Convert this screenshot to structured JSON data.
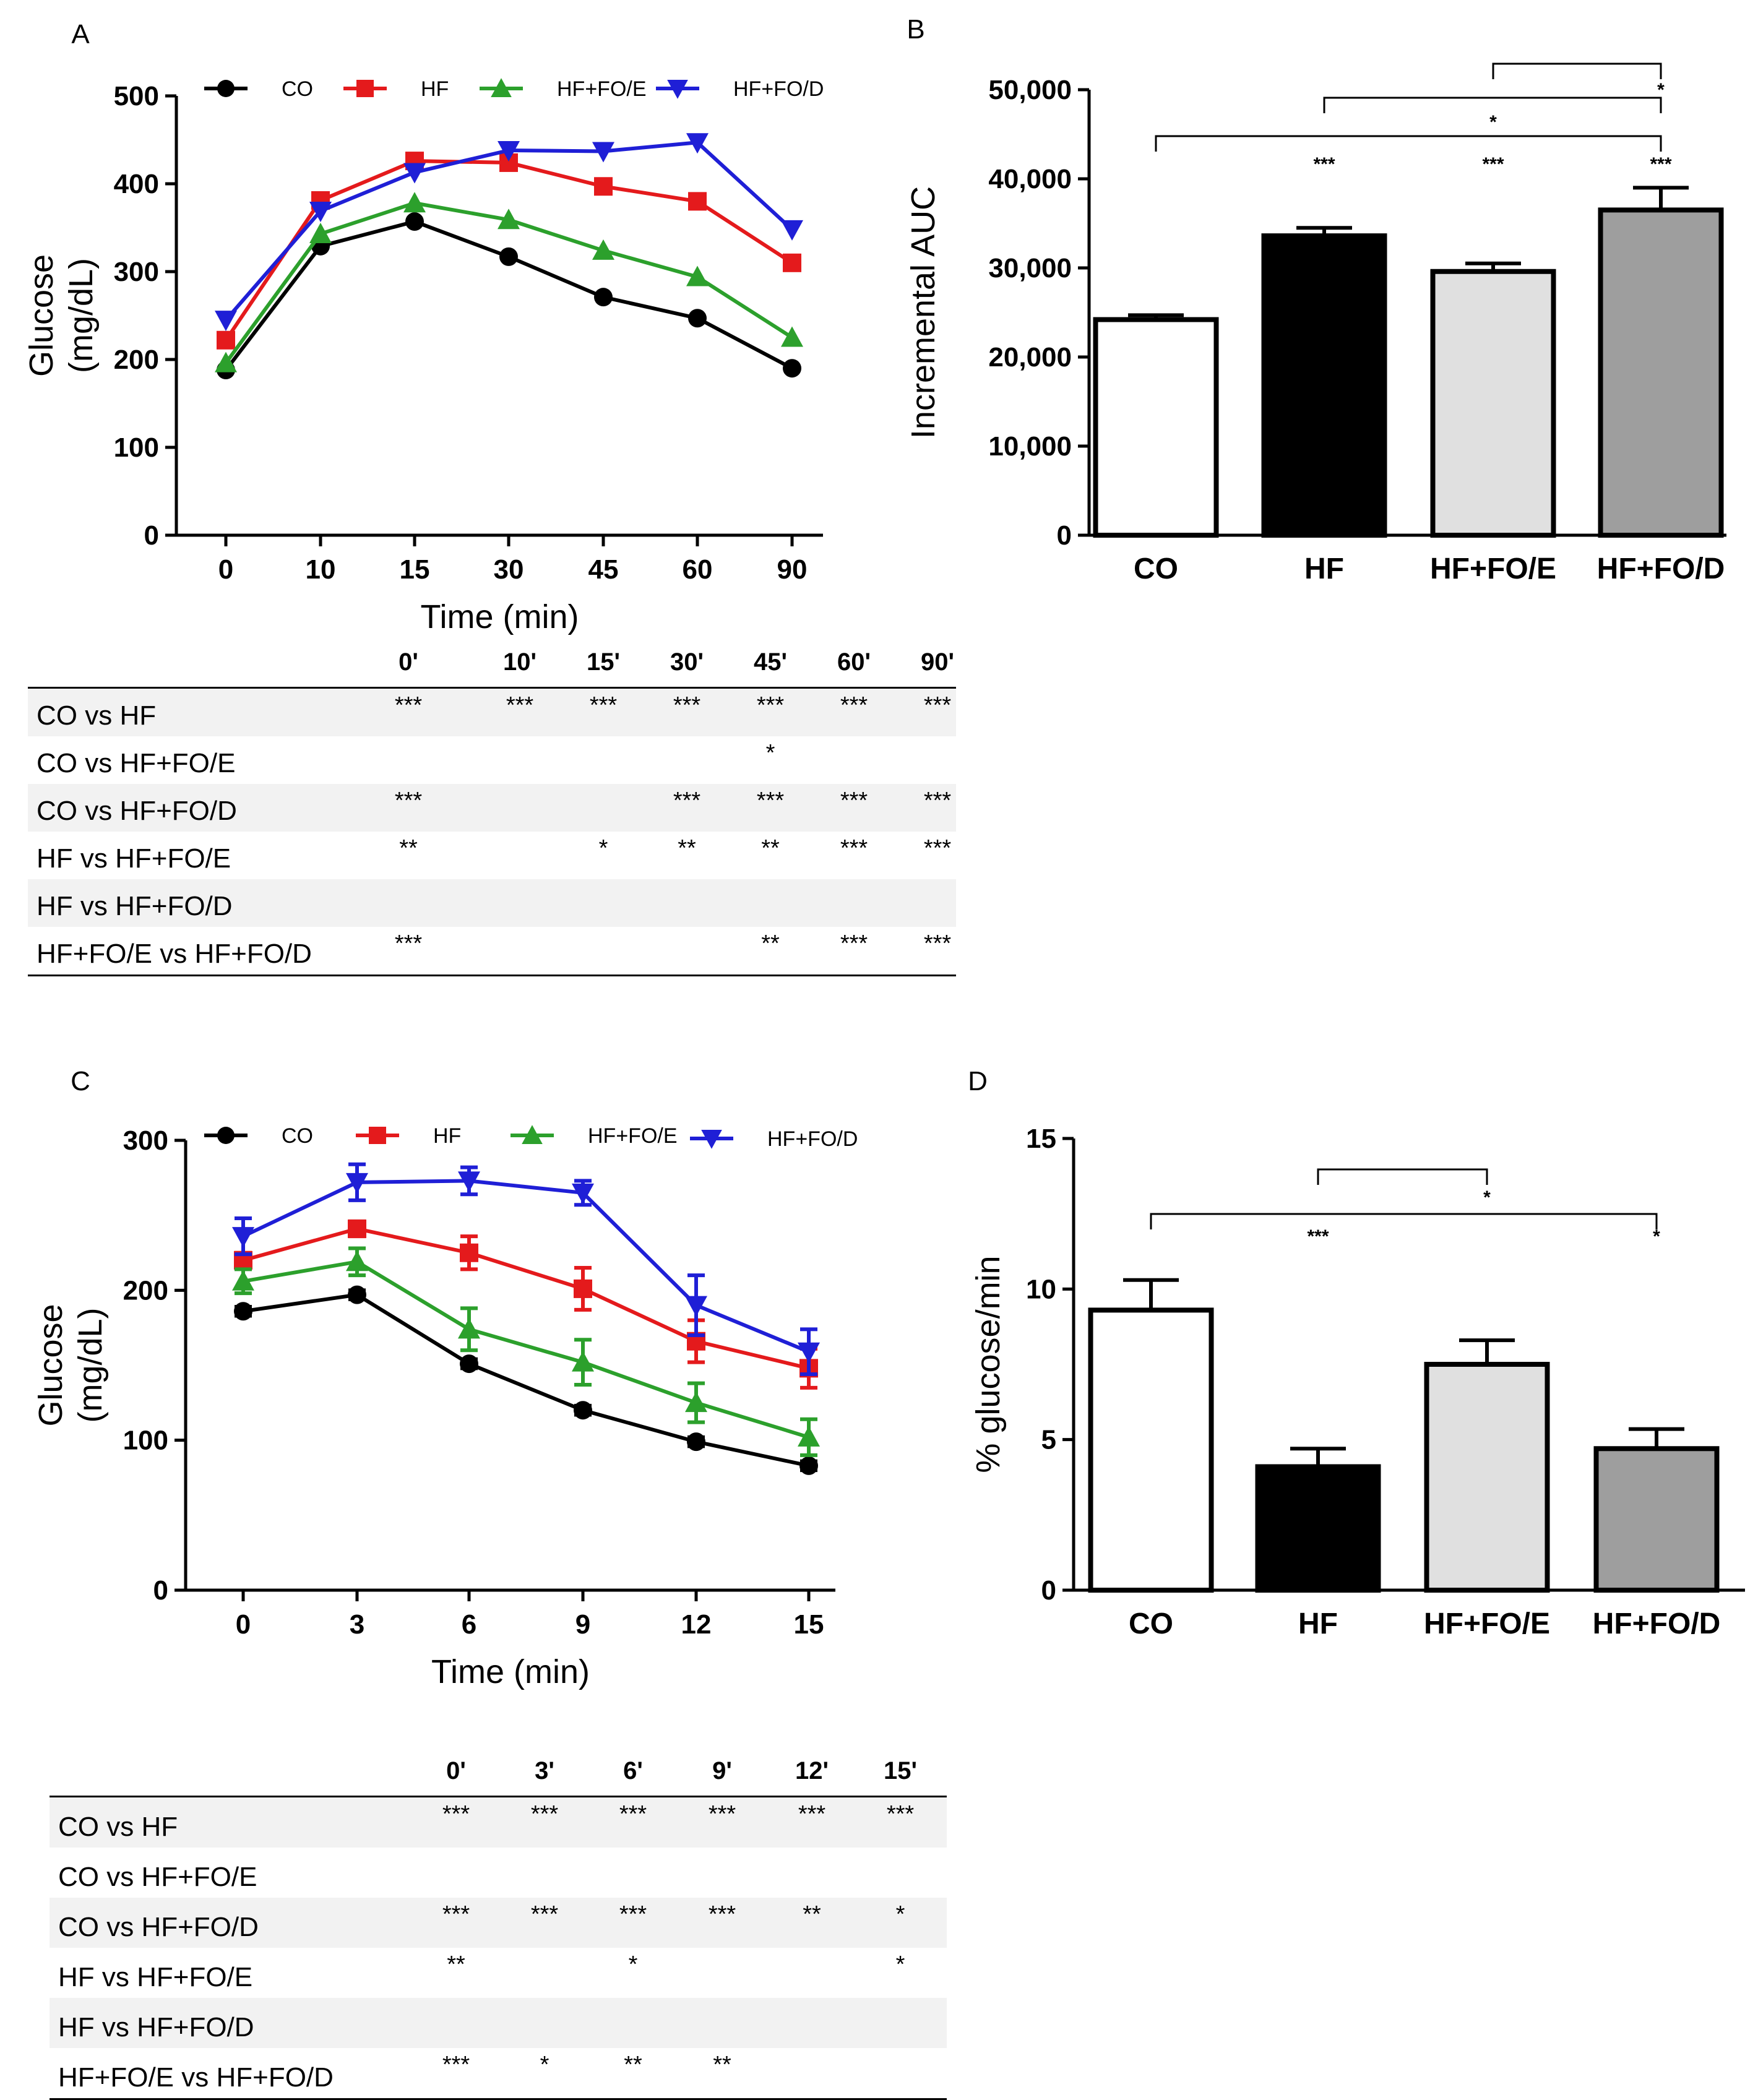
{
  "chart_data": [
    {
      "panel": "A",
      "type": "line",
      "xlabel": "Time (min)",
      "ylabel": "Glucose (mg/dL)",
      "categories": [
        "0",
        "10",
        "15",
        "30",
        "45",
        "60",
        "90"
      ],
      "ylim": [
        0,
        500
      ],
      "yticks": [
        "0",
        "100",
        "200",
        "300",
        "400",
        "500"
      ],
      "series": [
        {
          "name": "CO",
          "color": "#000000",
          "marker": "circle",
          "values": [
            188,
            329,
            357,
            317,
            271,
            247,
            190
          ]
        },
        {
          "name": "HF",
          "color": "#e41a1c",
          "marker": "square",
          "values": [
            222,
            381,
            426,
            424,
            397,
            380,
            310
          ]
        },
        {
          "name": "HF+FO/E",
          "color": "#2ca02c",
          "marker": "triangle-up",
          "values": [
            196,
            343,
            378,
            359,
            324,
            294,
            225
          ]
        },
        {
          "name": "HF+FO/D",
          "color": "#1f1fd6",
          "marker": "triangle-down",
          "values": [
            245,
            369,
            413,
            438,
            437,
            447,
            348
          ]
        }
      ]
    },
    {
      "panel": "B",
      "type": "bar",
      "ylabel": "Incremental AUC",
      "categories": [
        "CO",
        "HF",
        "HF+FO/E",
        "HF+FO/D"
      ],
      "values": [
        24200,
        33600,
        29600,
        36500
      ],
      "errors": [
        500,
        900,
        900,
        2500
      ],
      "colors": [
        "#ffffff",
        "#000000",
        "#e0e0e0",
        "#9e9e9e"
      ],
      "ylim": [
        0,
        50000
      ],
      "yticks": [
        "0",
        "10,000",
        "20,000",
        "30,000",
        "40,000",
        "50,000"
      ],
      "bar_labels": [
        "",
        "***",
        "***",
        "***"
      ],
      "brackets": [
        {
          "from": 1,
          "to": 3,
          "label": "*",
          "level": 2
        },
        {
          "from": 2,
          "to": 3,
          "label": "*",
          "level": 3
        },
        {
          "from": 0,
          "to": 3,
          "label": "*",
          "level": 1
        }
      ]
    },
    {
      "panel": "C",
      "type": "line",
      "xlabel": "Time (min)",
      "ylabel": "Glucose (mg/dL)",
      "categories": [
        "0",
        "3",
        "6",
        "9",
        "12",
        "15"
      ],
      "ylim": [
        0,
        300
      ],
      "yticks": [
        "0",
        "100",
        "200",
        "300"
      ],
      "series": [
        {
          "name": "CO",
          "color": "#000000",
          "marker": "circle",
          "values": [
            186,
            197,
            151,
            120,
            99,
            83
          ],
          "errors": [
            3,
            3,
            3,
            3,
            3,
            3
          ]
        },
        {
          "name": "HF",
          "color": "#e41a1c",
          "marker": "square",
          "values": [
            220,
            241,
            225,
            201,
            166,
            148
          ],
          "errors": [
            5,
            5,
            11,
            14,
            14,
            13
          ]
        },
        {
          "name": "HF+FO/E",
          "color": "#2ca02c",
          "marker": "triangle-up",
          "values": [
            206,
            219,
            174,
            152,
            125,
            102
          ],
          "errors": [
            8,
            9,
            14,
            15,
            13,
            12
          ]
        },
        {
          "name": "HF+FO/D",
          "color": "#1f1fd6",
          "marker": "triangle-down",
          "values": [
            236,
            272,
            273,
            265,
            190,
            159
          ],
          "errors": [
            12,
            12,
            9,
            8,
            20,
            15
          ]
        }
      ]
    },
    {
      "panel": "D",
      "type": "bar",
      "ylabel": "% glucose/min",
      "categories": [
        "CO",
        "HF",
        "HF+FO/E",
        "HF+FO/D"
      ],
      "values": [
        9.3,
        4.1,
        7.5,
        4.7
      ],
      "errors": [
        1.0,
        0.6,
        0.8,
        0.65
      ],
      "colors": [
        "#ffffff",
        "#000000",
        "#e0e0e0",
        "#9e9e9e"
      ],
      "ylim": [
        0,
        15
      ],
      "yticks": [
        "0",
        "5",
        "10",
        "15"
      ],
      "bar_labels": [
        "",
        "***",
        "",
        "*"
      ],
      "brackets": [
        {
          "from": 1,
          "to": 2,
          "label": "*",
          "level": 2
        },
        {
          "from": 0,
          "to": 3,
          "label": "",
          "level": 1
        }
      ]
    }
  ],
  "tables": [
    {
      "panel": "A",
      "headers": [
        "0'",
        "10'",
        "15'",
        "30'",
        "45'",
        "60'",
        "90'"
      ],
      "rows": [
        {
          "label": "CO vs HF",
          "cells": [
            "***",
            "***",
            "***",
            "***",
            "***",
            "***",
            "***"
          ]
        },
        {
          "label": "CO vs HF+FO/E",
          "cells": [
            "",
            "",
            "",
            "",
            "*",
            "",
            ""
          ]
        },
        {
          "label": "CO vs HF+FO/D",
          "cells": [
            "***",
            "",
            "",
            "***",
            "***",
            "***",
            "***"
          ]
        },
        {
          "label": "HF vs HF+FO/E",
          "cells": [
            "**",
            "",
            "*",
            "**",
            "**",
            "***",
            "***"
          ]
        },
        {
          "label": "HF vs HF+FO/D",
          "cells": [
            "",
            "",
            "",
            "",
            "",
            "",
            ""
          ]
        },
        {
          "label": "HF+FO/E vs HF+FO/D",
          "cells": [
            "***",
            "",
            "",
            "",
            "**",
            "***",
            "***"
          ]
        }
      ]
    },
    {
      "panel": "C",
      "headers": [
        "0'",
        "3'",
        "6'",
        "9'",
        "12'",
        "15'"
      ],
      "rows": [
        {
          "label": "CO vs HF",
          "cells": [
            "***",
            "***",
            "***",
            "***",
            "***",
            "***"
          ]
        },
        {
          "label": "CO vs HF+FO/E",
          "cells": [
            "",
            "",
            "",
            "",
            "",
            ""
          ]
        },
        {
          "label": "CO vs HF+FO/D",
          "cells": [
            "***",
            "***",
            "***",
            "***",
            "**",
            "*"
          ]
        },
        {
          "label": "HF vs HF+FO/E",
          "cells": [
            "**",
            "",
            "*",
            "",
            "",
            "*"
          ]
        },
        {
          "label": "HF vs HF+FO/D",
          "cells": [
            "",
            "",
            "",
            "",
            "",
            ""
          ]
        },
        {
          "label": "HF+FO/E vs HF+FO/D",
          "cells": [
            "***",
            "*",
            "**",
            "**",
            "",
            ""
          ]
        }
      ]
    }
  ],
  "panel_letters": [
    "A",
    "B",
    "C",
    "D"
  ]
}
